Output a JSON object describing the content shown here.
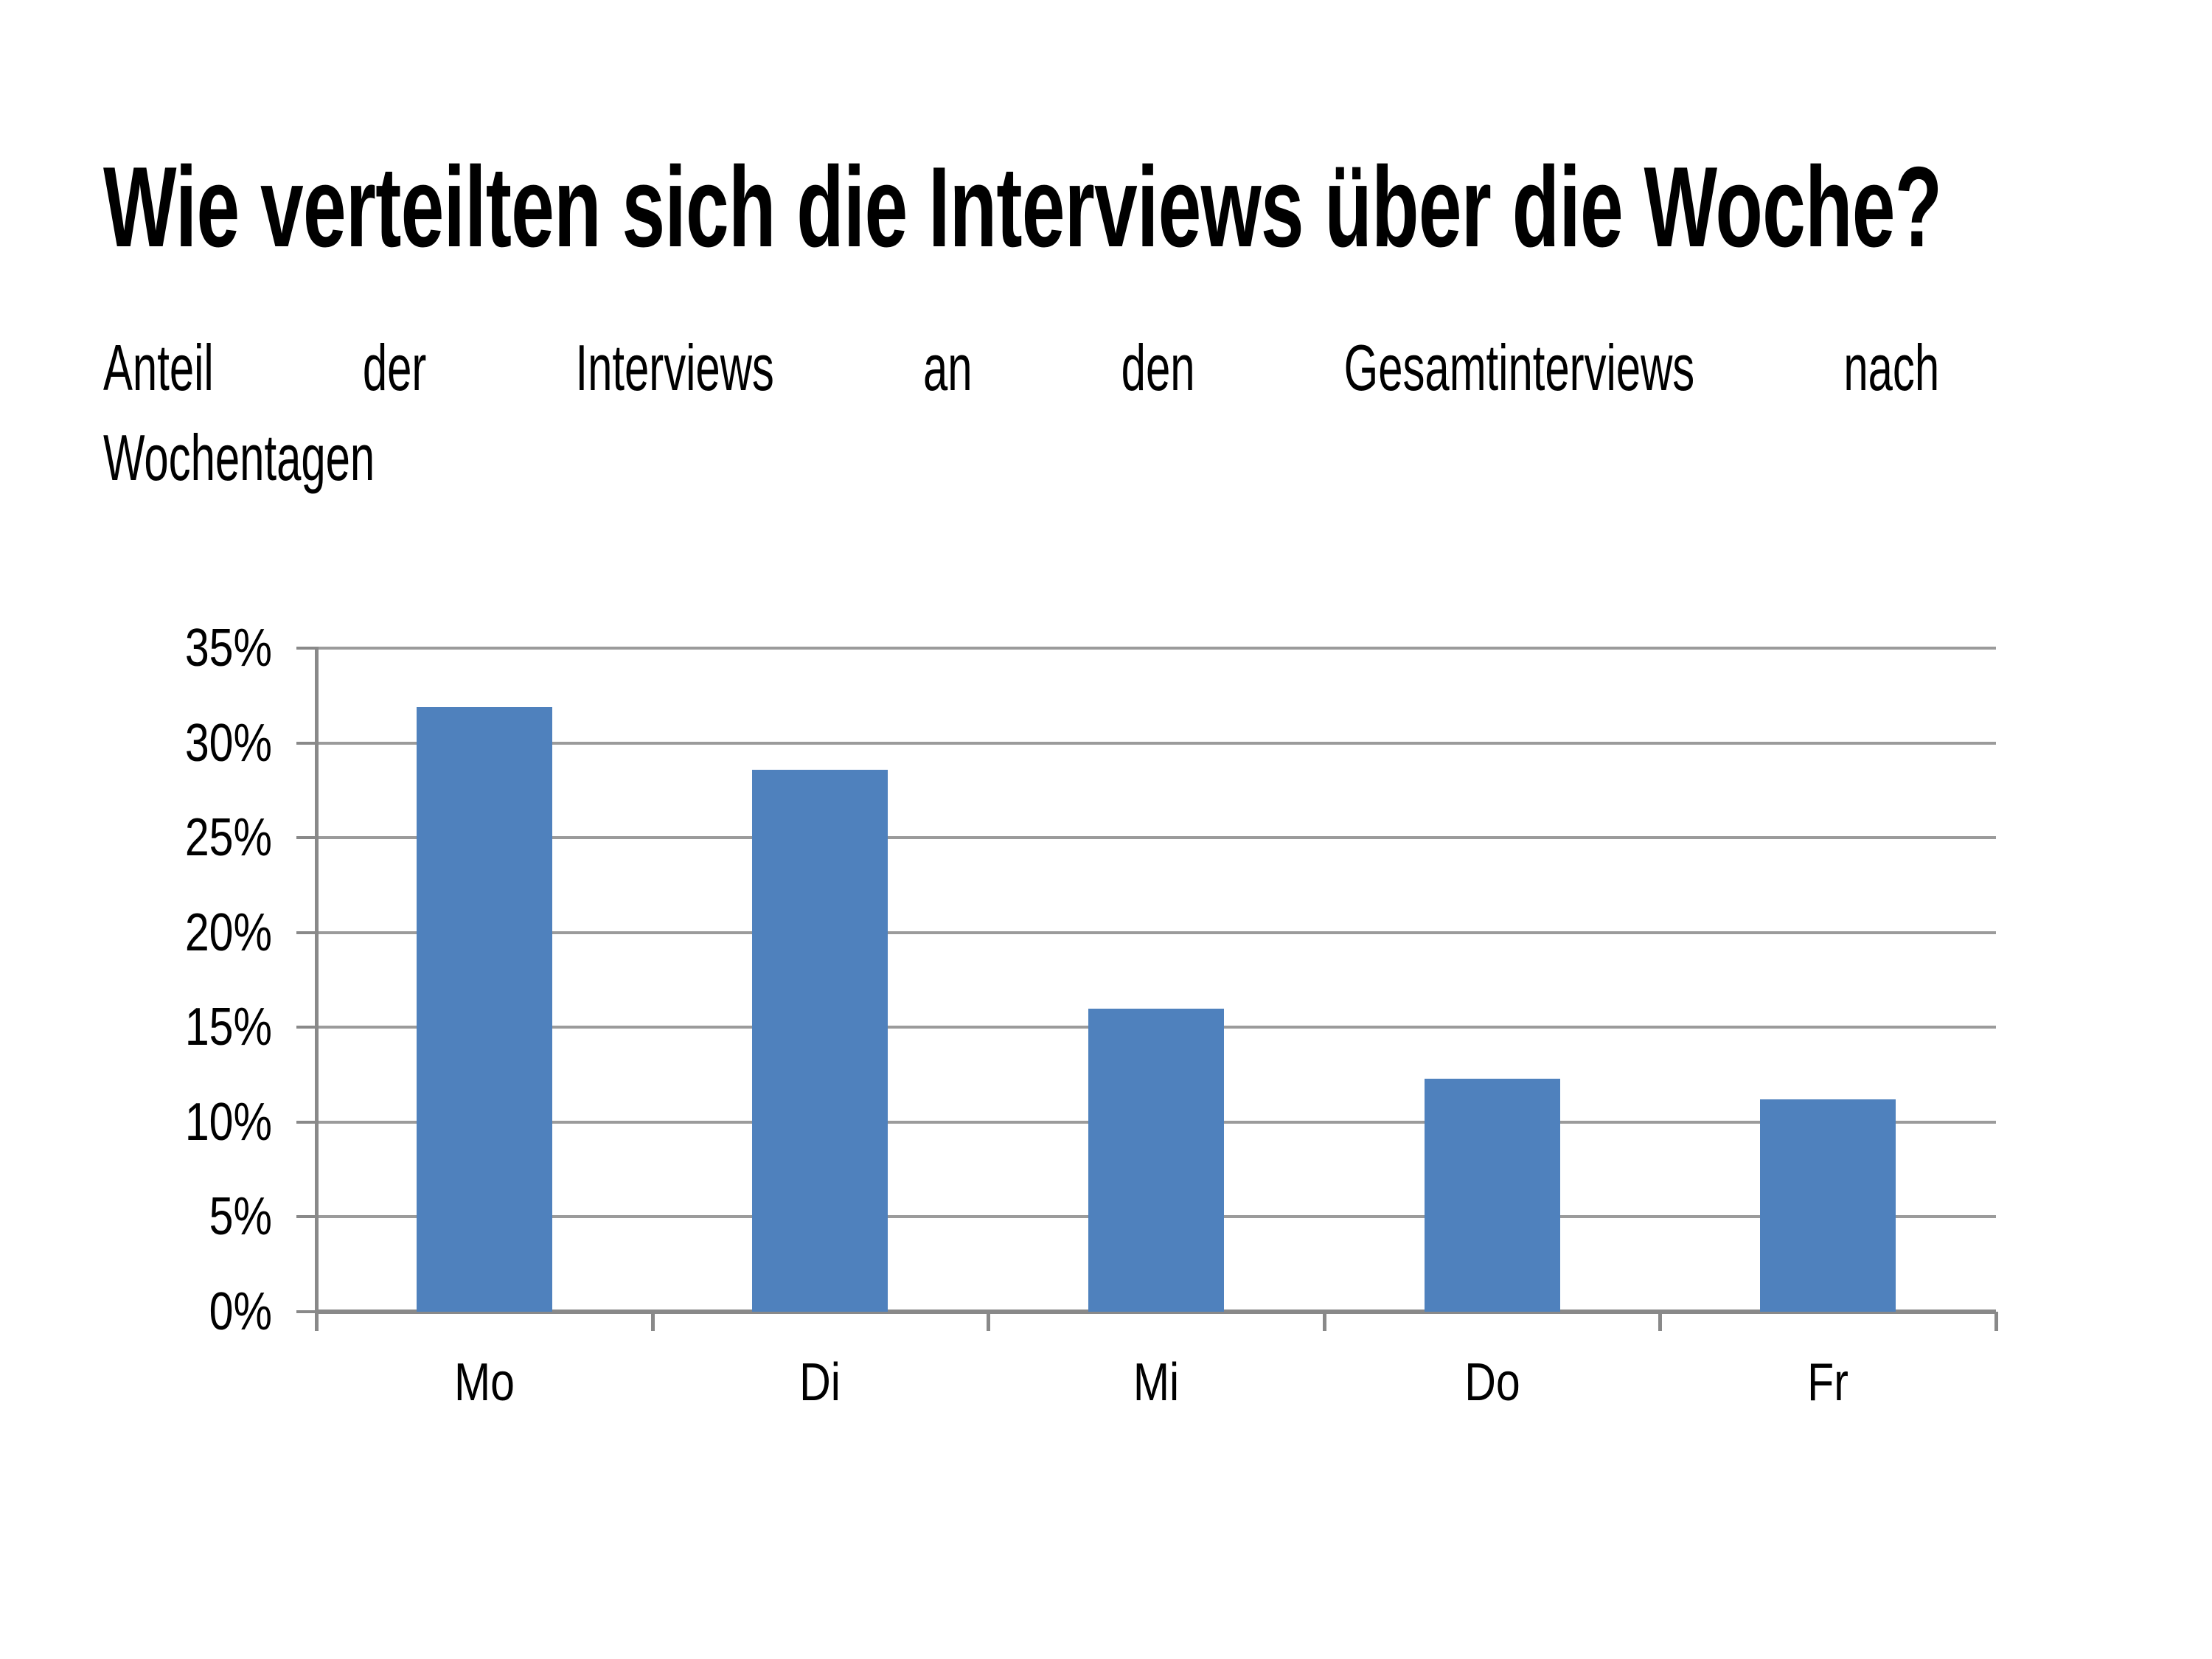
{
  "title": "Wie verteilten sich die Interviews über die Woche?",
  "subtitle": {
    "full_text": "Anteil der Interviews an den Gesamtinterviews nach Wochentagen",
    "line1_words": [
      "Anteil",
      "der",
      "Interviews",
      "an",
      "den",
      "Gesamtinterviews",
      "nach"
    ],
    "line2": "Wochentagen"
  },
  "chart_data": {
    "type": "bar",
    "title": "",
    "xlabel": "",
    "ylabel": "",
    "categories": [
      "Mo",
      "Di",
      "Mi",
      "Do",
      "Fr"
    ],
    "values": [
      31.9,
      28.6,
      16.0,
      12.3,
      11.2
    ],
    "unit": "%",
    "ylim": [
      0,
      35
    ],
    "ytick_step": 5,
    "yticks": [
      {
        "value": 0,
        "label": "0%"
      },
      {
        "value": 5,
        "label": "5%"
      },
      {
        "value": 10,
        "label": "10%"
      },
      {
        "value": 15,
        "label": "15%"
      },
      {
        "value": 20,
        "label": "20%"
      },
      {
        "value": 25,
        "label": "25%"
      },
      {
        "value": 30,
        "label": "30%"
      },
      {
        "value": 35,
        "label": "35%"
      }
    ],
    "grid": true,
    "legend": "none",
    "colors": {
      "bar": "#4F81BD",
      "gridline": "#9b9b9b",
      "axis": "#898989",
      "text": "#000000",
      "background": "#ffffff"
    }
  }
}
